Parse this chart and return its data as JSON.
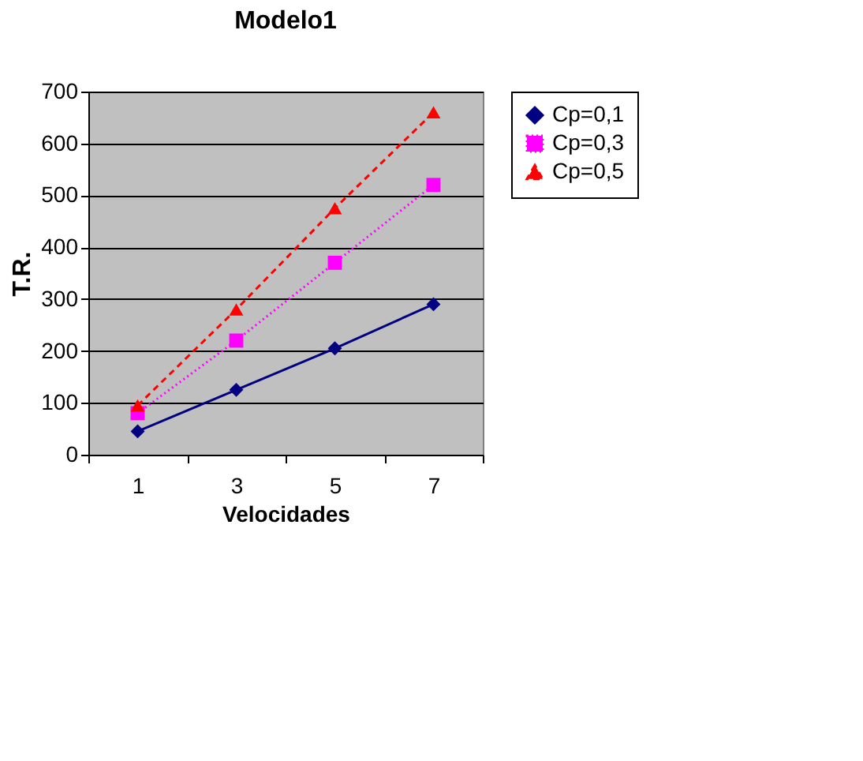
{
  "chart_data": {
    "type": "line",
    "title": "Modelo1",
    "xlabel": "Velocidades",
    "ylabel": "T.R.",
    "categories": [
      "1",
      "3",
      "5",
      "7"
    ],
    "series": [
      {
        "name": "Cp=0,1",
        "color": "#000080",
        "marker": "diamond",
        "line_style": "solid",
        "values": [
          45,
          125,
          205,
          290
        ]
      },
      {
        "name": "Cp=0,3",
        "color": "#ff00ff",
        "marker": "square",
        "line_style": "dotted",
        "values": [
          80,
          220,
          370,
          520
        ]
      },
      {
        "name": "Cp=0,5",
        "color": "#ff0000",
        "marker": "triangle",
        "line_style": "dashed",
        "values": [
          95,
          280,
          475,
          660
        ]
      }
    ],
    "ylim": [
      0,
      700
    ],
    "yticks": [
      0,
      100,
      200,
      300,
      400,
      500,
      600,
      700
    ],
    "grid": "y",
    "legend": "right"
  }
}
